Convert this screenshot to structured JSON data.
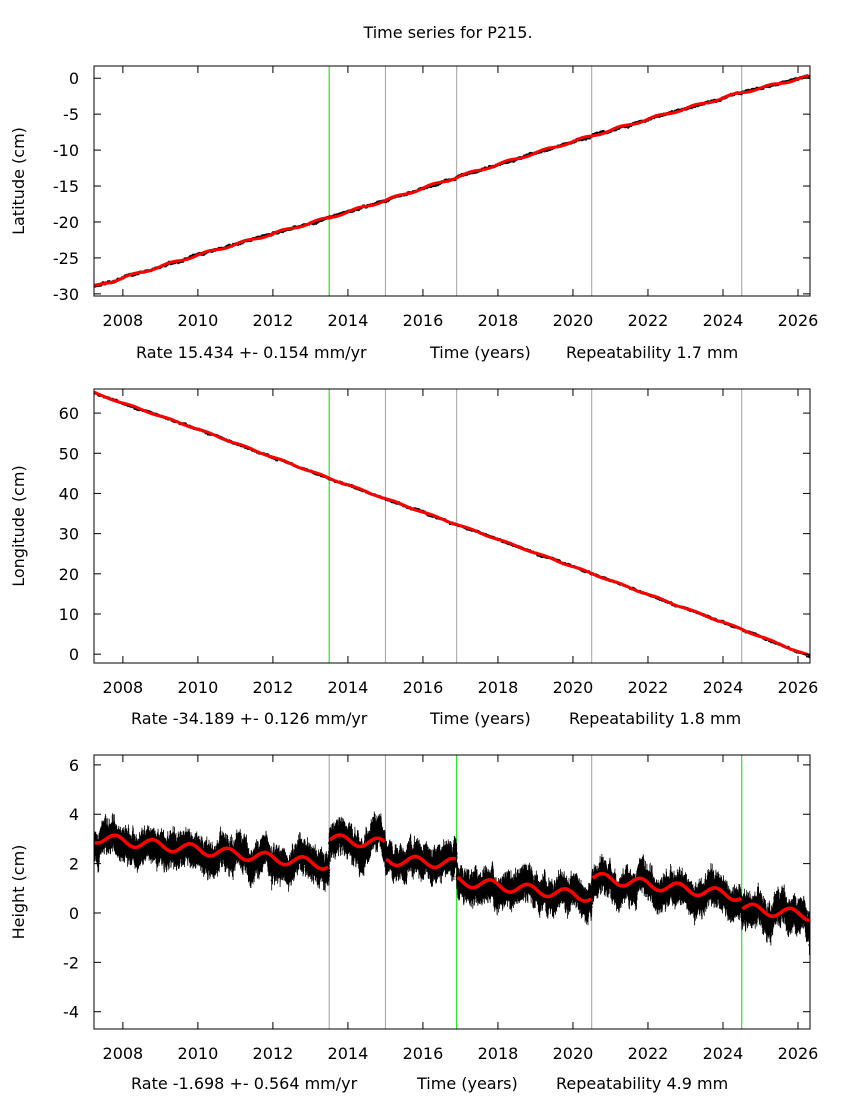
{
  "title": "Time series for P215.",
  "chart_data": [
    {
      "type": "line",
      "ylabel": "Latitude (cm)",
      "xlabel": "Time (years)",
      "rate_text": "Rate 15.434 +- 0.154 mm/yr",
      "repeat_text": "Repeatability 1.7 mm",
      "xlim": [
        2007.23,
        2026.32
      ],
      "ylim": [
        -30.3,
        1.7
      ],
      "xticks": [
        2008,
        2010,
        2012,
        2014,
        2016,
        2018,
        2020,
        2022,
        2024,
        2026
      ],
      "yticks": [
        0,
        -5,
        -10,
        -15,
        -20,
        -25,
        -30
      ],
      "events": [
        {
          "t": 2013.5,
          "color": "#00e000"
        },
        {
          "t": 2015.0,
          "color": "#a0a0a0"
        },
        {
          "t": 2016.9,
          "color": "#a0a0a0"
        },
        {
          "t": 2020.5,
          "color": "#a0a0a0"
        },
        {
          "t": 2024.5,
          "color": "#a0a0a0"
        }
      ],
      "model": {
        "x": [
          2007.23,
          2010,
          2013.5,
          2015,
          2017,
          2020,
          2022,
          2024.5,
          2026.32
        ],
        "y": [
          -29.0,
          -24.6,
          -19.4,
          -17.0,
          -13.6,
          -8.8,
          -5.7,
          -2.0,
          0.3
        ]
      },
      "noise_cm": 0.35,
      "data_color": "#000000",
      "model_color": "#ff0000"
    },
    {
      "type": "line",
      "ylabel": "Longitude (cm)",
      "xlabel": "Time (years)",
      "rate_text": "Rate -34.189 +- 0.126 mm/yr",
      "repeat_text": "Repeatability 1.8 mm",
      "xlim": [
        2007.23,
        2026.32
      ],
      "ylim": [
        -2.2,
        66
      ],
      "xticks": [
        2008,
        2010,
        2012,
        2014,
        2016,
        2018,
        2020,
        2022,
        2024,
        2026
      ],
      "yticks": [
        0,
        10,
        20,
        30,
        40,
        50,
        60
      ],
      "events": [
        {
          "t": 2013.5,
          "color": "#00e000"
        },
        {
          "t": 2015.0,
          "color": "#a0a0a0"
        },
        {
          "t": 2016.9,
          "color": "#a0a0a0"
        },
        {
          "t": 2020.5,
          "color": "#a0a0a0"
        },
        {
          "t": 2024.5,
          "color": "#a0a0a0"
        }
      ],
      "model": {
        "x": [
          2007.23,
          2010,
          2013.5,
          2016.9,
          2020,
          2024.5,
          2026.32
        ],
        "y": [
          65.0,
          56.0,
          43.8,
          32.3,
          21.8,
          6.2,
          -0.5
        ]
      },
      "noise_cm": 0.5,
      "data_color": "#000000",
      "model_color": "#ff0000"
    },
    {
      "type": "line",
      "ylabel": "Height (cm)",
      "xlabel": "Time (years)",
      "rate_text": "Rate -1.698 +- 0.564 mm/yr",
      "repeat_text": "Repeatability 4.9 mm",
      "xlim": [
        2007.23,
        2026.32
      ],
      "ylim": [
        -4.7,
        6.4
      ],
      "xticks": [
        2008,
        2010,
        2012,
        2014,
        2016,
        2018,
        2020,
        2022,
        2024,
        2026
      ],
      "yticks": [
        6,
        4,
        2,
        0,
        -2,
        -4
      ],
      "events": [
        {
          "t": 2013.5,
          "color": "#a0a0a0"
        },
        {
          "t": 2015.0,
          "color": "#a0a0a0"
        },
        {
          "t": 2016.9,
          "color": "#00e000"
        },
        {
          "t": 2020.5,
          "color": "#a0a0a0"
        },
        {
          "t": 2024.5,
          "color": "#00e000"
        }
      ],
      "segments": [
        {
          "start": 2007.23,
          "end": 2013.5,
          "y0": 3.05,
          "y1": 1.95
        },
        {
          "start": 2013.5,
          "end": 2015.0,
          "y0": 3.0,
          "y1": 2.8
        },
        {
          "start": 2015.0,
          "end": 2016.9,
          "y0": 2.15,
          "y1": 2.0
        },
        {
          "start": 2016.9,
          "end": 2020.5,
          "y0": 1.3,
          "y1": 0.65
        },
        {
          "start": 2020.5,
          "end": 2024.5,
          "y0": 1.45,
          "y1": 0.68
        },
        {
          "start": 2024.5,
          "end": 2026.32,
          "y0": 0.2,
          "y1": -0.1
        }
      ],
      "seasonal_amplitude_cm": 0.2,
      "noise_cm": 0.9,
      "data_color": "#000000",
      "model_color": "#ff0000"
    }
  ]
}
